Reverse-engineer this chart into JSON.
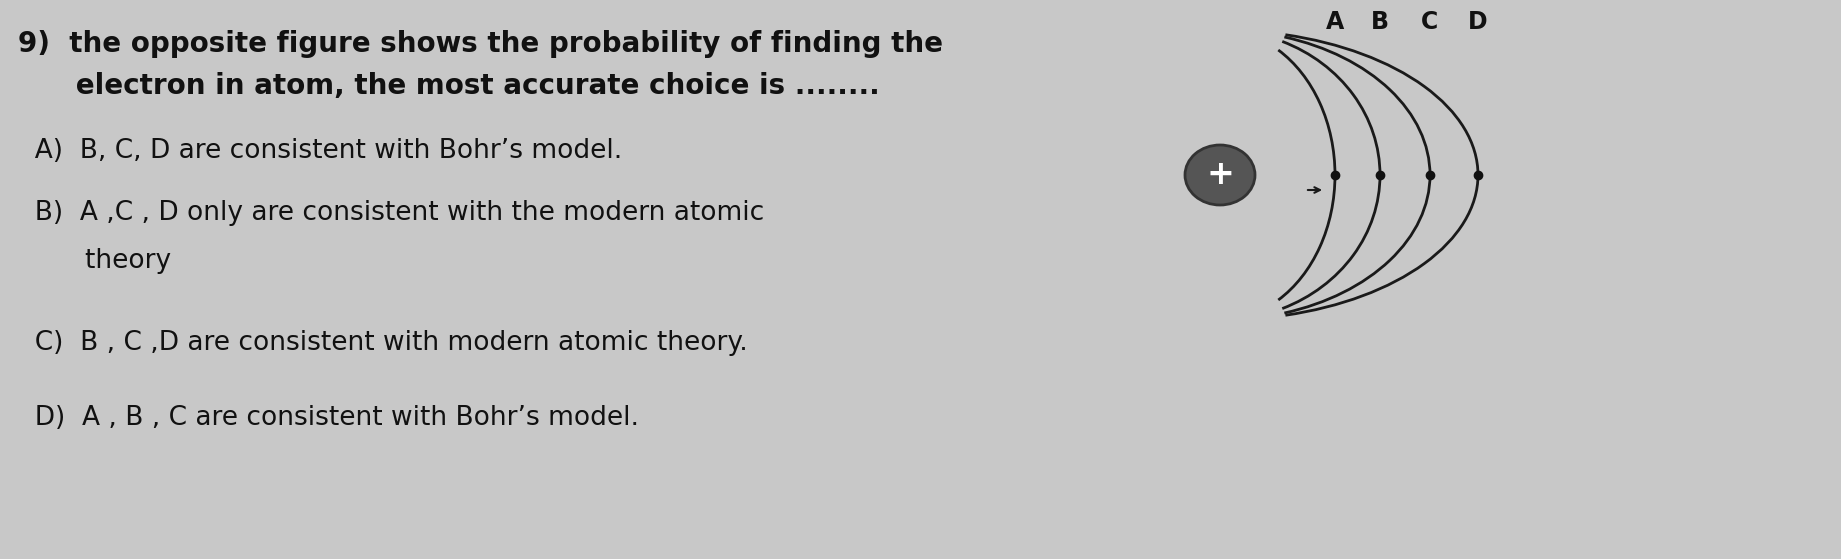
{
  "bg_color": "#c8c8c8",
  "title_line1": "9)  the opposite figure shows the probability of finding the",
  "title_line2": "      electron in atom, the most accurate choice is ........",
  "option_A": "  A)  B, C, D are consistent with Bohr’s model.",
  "option_B": "  B)  A ,C , D only are consistent with the modern atomic",
  "option_B2": "        theory",
  "option_C": "  C)  B , C ,D are consistent with modern atomic theory.",
  "option_D": "  D)  A , B , C are consistent with Bohr’s model.",
  "text_color": "#111111",
  "nucleus_color": "#555555",
  "arc_labels": [
    "A",
    "B",
    "C",
    "D"
  ],
  "arc_color": "#1a1a1a",
  "dot_color": "#111111",
  "title_fontsize": 20,
  "option_fontsize": 19
}
